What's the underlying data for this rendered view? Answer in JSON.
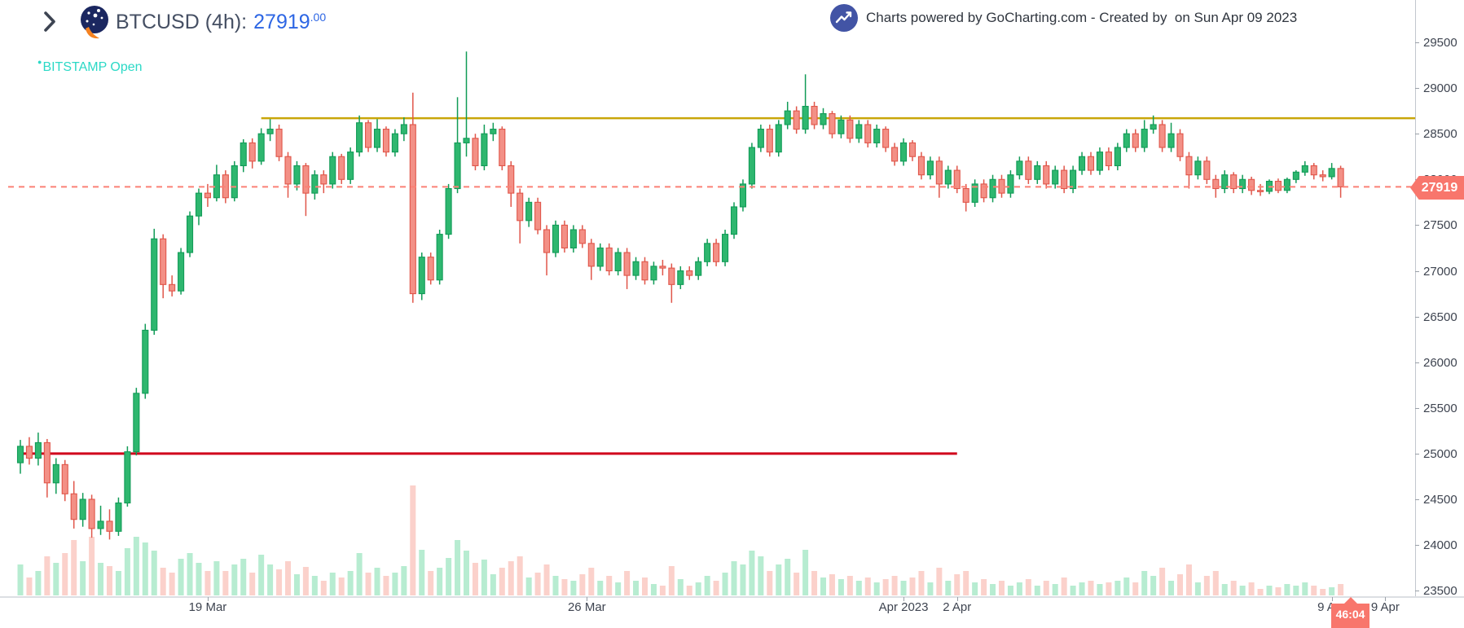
{
  "header": {
    "title_text": "BTCUSD (4h):",
    "price_int": "27919",
    "price_dec": ".00",
    "exchange_status": "BITSTAMP Open",
    "status_bullet": "●"
  },
  "attribution": {
    "text": "Charts powered by GoCharting.com - Created by  on Sun Apr 09 2023"
  },
  "price_tag": {
    "value": "27919"
  },
  "countdown": {
    "value": "46:04"
  },
  "colors": {
    "candle_up_fill": "#2eb76f",
    "candle_up_stroke": "#119b57",
    "candle_down_fill": "#f39086",
    "candle_down_stroke": "#e0564a",
    "volume_up": "#b7ecd1",
    "volume_down": "#fbd1cb",
    "resistance_line": "#c9a609",
    "support_line": "#d0021b",
    "last_price_line": "#fb8176",
    "tag_bg": "#f8766c",
    "price_blue": "#2d66e4",
    "status_teal": "#2bd9c6"
  },
  "chart_data": {
    "type": "candlestick",
    "symbol": "BTCUSD",
    "interval": "4h",
    "exchange": "BITSTAMP",
    "last_price": 27919,
    "y_axis": {
      "ticks": [
        29500,
        29000,
        28500,
        28000,
        27500,
        27000,
        26500,
        26000,
        25500,
        25000,
        24500,
        24000,
        23500
      ]
    },
    "x_axis": {
      "ticks": [
        {
          "label": "19 Mar",
          "index": 21
        },
        {
          "label": "26 Mar",
          "index": 63.5
        },
        {
          "label": "Apr 2023",
          "index": 99
        },
        {
          "label": "2 Apr",
          "index": 105
        },
        {
          "label": "9 Apr",
          "index": 147
        },
        {
          "label": "9 Apr",
          "index": 153
        }
      ]
    },
    "levels": [
      {
        "name": "resistance-ray",
        "price": 28670,
        "color": "#c9a609",
        "width": 2.5,
        "style": "solid",
        "from_index": 27,
        "to_axis": true
      },
      {
        "name": "support-line",
        "price": 25000,
        "color": "#d0021b",
        "width": 3,
        "style": "solid",
        "from_index": -0.3,
        "to_index": 105
      },
      {
        "name": "last-price-line",
        "price": 27919,
        "color": "#fb8176",
        "width": 2,
        "style": "dashed",
        "from_edge": true,
        "to_axis": true
      }
    ],
    "candles": [
      [
        24900,
        25150,
        24780,
        25080
      ],
      [
        25080,
        25180,
        24880,
        24950
      ],
      [
        24950,
        25230,
        24870,
        25120
      ],
      [
        25120,
        25160,
        24520,
        24680
      ],
      [
        24680,
        24950,
        24560,
        24880
      ],
      [
        24880,
        24930,
        24480,
        24560
      ],
      [
        24560,
        24700,
        24180,
        24280
      ],
      [
        24280,
        24570,
        24200,
        24500
      ],
      [
        24500,
        24550,
        24080,
        24180
      ],
      [
        24180,
        24430,
        24110,
        24260
      ],
      [
        24260,
        24390,
        24060,
        24150
      ],
      [
        24150,
        24520,
        24100,
        24460
      ],
      [
        24460,
        25080,
        24420,
        25020
      ],
      [
        25020,
        25720,
        24980,
        25660
      ],
      [
        25660,
        26420,
        25600,
        26350
      ],
      [
        26350,
        27460,
        26300,
        27350
      ],
      [
        27350,
        27400,
        26700,
        26850
      ],
      [
        26850,
        26950,
        26720,
        26780
      ],
      [
        26780,
        27250,
        26740,
        27200
      ],
      [
        27200,
        27650,
        27150,
        27600
      ],
      [
        27600,
        27900,
        27500,
        27850
      ],
      [
        27850,
        27950,
        27700,
        27800
      ],
      [
        27800,
        28160,
        27760,
        28050
      ],
      [
        28050,
        28100,
        27740,
        27800
      ],
      [
        27800,
        28200,
        27760,
        28150
      ],
      [
        28150,
        28440,
        28080,
        28400
      ],
      [
        28400,
        28450,
        28120,
        28200
      ],
      [
        28200,
        28560,
        28160,
        28500
      ],
      [
        28500,
        28660,
        28420,
        28550
      ],
      [
        28550,
        28600,
        28200,
        28250
      ],
      [
        28250,
        28300,
        27800,
        27950
      ],
      [
        27950,
        28200,
        27880,
        28150
      ],
      [
        28150,
        28180,
        27600,
        27850
      ],
      [
        27850,
        28100,
        27780,
        28050
      ],
      [
        28050,
        28100,
        27850,
        27950
      ],
      [
        27950,
        28300,
        27900,
        28250
      ],
      [
        28250,
        28280,
        27950,
        28000
      ],
      [
        28000,
        28350,
        27950,
        28300
      ],
      [
        28300,
        28700,
        28250,
        28620
      ],
      [
        28620,
        28650,
        28300,
        28350
      ],
      [
        28350,
        28660,
        28300,
        28550
      ],
      [
        28550,
        28580,
        28250,
        28300
      ],
      [
        28300,
        28550,
        28250,
        28500
      ],
      [
        28500,
        28680,
        28420,
        28600
      ],
      [
        28600,
        28950,
        26650,
        26750
      ],
      [
        26750,
        27200,
        26680,
        27150
      ],
      [
        27150,
        27200,
        26850,
        26900
      ],
      [
        26900,
        27450,
        26850,
        27400
      ],
      [
        27400,
        27950,
        27350,
        27900
      ],
      [
        27900,
        28900,
        27850,
        28400
      ],
      [
        28400,
        29400,
        28250,
        28450
      ],
      [
        28450,
        28500,
        28100,
        28150
      ],
      [
        28150,
        28600,
        28100,
        28500
      ],
      [
        28500,
        28620,
        28420,
        28550
      ],
      [
        28550,
        28580,
        28100,
        28150
      ],
      [
        28150,
        28200,
        27700,
        27850
      ],
      [
        27850,
        27900,
        27300,
        27550
      ],
      [
        27550,
        27800,
        27480,
        27750
      ],
      [
        27750,
        27800,
        27400,
        27450
      ],
      [
        27450,
        27500,
        26950,
        27200
      ],
      [
        27200,
        27550,
        27150,
        27500
      ],
      [
        27500,
        27550,
        27200,
        27250
      ],
      [
        27250,
        27500,
        27200,
        27450
      ],
      [
        27450,
        27500,
        27250,
        27300
      ],
      [
        27300,
        27350,
        26900,
        27050
      ],
      [
        27050,
        27300,
        27000,
        27250
      ],
      [
        27250,
        27300,
        26950,
        27000
      ],
      [
        27000,
        27250,
        26950,
        27200
      ],
      [
        27200,
        27250,
        26800,
        26950
      ],
      [
        26950,
        27150,
        26900,
        27100
      ],
      [
        27100,
        27150,
        26850,
        26900
      ],
      [
        26900,
        27100,
        26850,
        27050
      ],
      [
        27050,
        27120,
        26950,
        27030
      ],
      [
        27030,
        27080,
        26650,
        26850
      ],
      [
        26850,
        27050,
        26800,
        27000
      ],
      [
        27000,
        27050,
        26900,
        26950
      ],
      [
        26950,
        27150,
        26900,
        27100
      ],
      [
        27100,
        27350,
        27050,
        27300
      ],
      [
        27300,
        27350,
        27050,
        27100
      ],
      [
        27100,
        27450,
        27050,
        27400
      ],
      [
        27400,
        27750,
        27350,
        27700
      ],
      [
        27700,
        28000,
        27650,
        27950
      ],
      [
        27950,
        28400,
        27900,
        28350
      ],
      [
        28350,
        28600,
        28300,
        28550
      ],
      [
        28550,
        28600,
        28250,
        28300
      ],
      [
        28300,
        28650,
        28250,
        28600
      ],
      [
        28600,
        28850,
        28550,
        28750
      ],
      [
        28750,
        28800,
        28500,
        28550
      ],
      [
        28550,
        29150,
        28500,
        28800
      ],
      [
        28800,
        28850,
        28550,
        28600
      ],
      [
        28600,
        28780,
        28550,
        28720
      ],
      [
        28720,
        28750,
        28450,
        28500
      ],
      [
        28500,
        28700,
        28450,
        28650
      ],
      [
        28650,
        28700,
        28400,
        28450
      ],
      [
        28450,
        28650,
        28400,
        28600
      ],
      [
        28600,
        28650,
        28350,
        28400
      ],
      [
        28400,
        28600,
        28350,
        28550
      ],
      [
        28550,
        28580,
        28300,
        28350
      ],
      [
        28350,
        28400,
        28150,
        28200
      ],
      [
        28200,
        28450,
        28150,
        28400
      ],
      [
        28400,
        28430,
        28200,
        28250
      ],
      [
        28250,
        28300,
        28000,
        28050
      ],
      [
        28050,
        28250,
        28000,
        28200
      ],
      [
        28200,
        28250,
        27800,
        27950
      ],
      [
        27950,
        28150,
        27900,
        28100
      ],
      [
        28100,
        28150,
        27850,
        27900
      ],
      [
        27900,
        27950,
        27650,
        27750
      ],
      [
        27750,
        28000,
        27700,
        27950
      ],
      [
        27950,
        28000,
        27750,
        27800
      ],
      [
        27800,
        28050,
        27750,
        28000
      ],
      [
        28000,
        28050,
        27800,
        27850
      ],
      [
        27850,
        28100,
        27800,
        28050
      ],
      [
        28050,
        28250,
        28000,
        28200
      ],
      [
        28200,
        28250,
        27950,
        28000
      ],
      [
        28000,
        28200,
        27950,
        28150
      ],
      [
        28150,
        28200,
        27900,
        27950
      ],
      [
        27950,
        28150,
        27900,
        28100
      ],
      [
        28100,
        28150,
        27850,
        27900
      ],
      [
        27900,
        28150,
        27850,
        28100
      ],
      [
        28100,
        28300,
        28050,
        28250
      ],
      [
        28250,
        28300,
        28050,
        28100
      ],
      [
        28100,
        28350,
        28050,
        28300
      ],
      [
        28300,
        28350,
        28100,
        28150
      ],
      [
        28150,
        28400,
        28100,
        28350
      ],
      [
        28350,
        28550,
        28300,
        28500
      ],
      [
        28500,
        28550,
        28300,
        28350
      ],
      [
        28350,
        28650,
        28300,
        28550
      ],
      [
        28550,
        28700,
        28500,
        28600
      ],
      [
        28600,
        28650,
        28300,
        28350
      ],
      [
        28350,
        28620,
        28300,
        28500
      ],
      [
        28500,
        28550,
        28200,
        28250
      ],
      [
        28250,
        28300,
        27900,
        28050
      ],
      [
        28050,
        28250,
        28000,
        28200
      ],
      [
        28200,
        28250,
        27950,
        28000
      ],
      [
        28000,
        28050,
        27800,
        27900
      ],
      [
        27900,
        28100,
        27850,
        28050
      ],
      [
        28050,
        28080,
        27850,
        27900
      ],
      [
        27900,
        28050,
        27850,
        28000
      ],
      [
        28000,
        28030,
        27830,
        27880
      ],
      [
        27880,
        27950,
        27820,
        27870
      ],
      [
        27870,
        28000,
        27840,
        27980
      ],
      [
        27980,
        28010,
        27850,
        27880
      ],
      [
        27880,
        28020,
        27850,
        28000
      ],
      [
        28000,
        28100,
        27960,
        28080
      ],
      [
        28080,
        28200,
        28040,
        28150
      ],
      [
        28150,
        28180,
        28000,
        28050
      ],
      [
        28050,
        28100,
        27980,
        28030
      ],
      [
        28030,
        28180,
        28000,
        28120
      ],
      [
        28120,
        28150,
        27800,
        27919
      ]
    ],
    "volume": [
      38,
      22,
      30,
      48,
      40,
      52,
      68,
      42,
      72,
      40,
      36,
      30,
      58,
      72,
      65,
      55,
      34,
      28,
      45,
      52,
      40,
      30,
      42,
      30,
      38,
      45,
      28,
      50,
      38,
      32,
      42,
      26,
      35,
      24,
      18,
      28,
      22,
      30,
      52,
      28,
      34,
      24,
      28,
      36,
      135,
      56,
      30,
      34,
      46,
      68,
      55,
      40,
      44,
      26,
      34,
      42,
      48,
      22,
      28,
      38,
      24,
      20,
      18,
      26,
      34,
      18,
      24,
      16,
      30,
      18,
      22,
      14,
      12,
      36,
      20,
      12,
      16,
      24,
      18,
      28,
      42,
      38,
      55,
      48,
      30,
      38,
      45,
      28,
      56,
      30,
      22,
      26,
      20,
      24,
      18,
      22,
      16,
      20,
      24,
      18,
      22,
      30,
      16,
      34,
      18,
      26,
      30,
      16,
      20,
      14,
      18,
      12,
      16,
      20,
      12,
      18,
      14,
      22,
      12,
      16,
      18,
      14,
      16,
      18,
      22,
      16,
      30,
      24,
      34,
      18,
      26,
      38,
      16,
      24,
      30,
      14,
      18,
      12,
      16,
      8,
      12,
      10,
      14,
      12,
      16,
      12,
      8,
      10,
      14
    ]
  }
}
